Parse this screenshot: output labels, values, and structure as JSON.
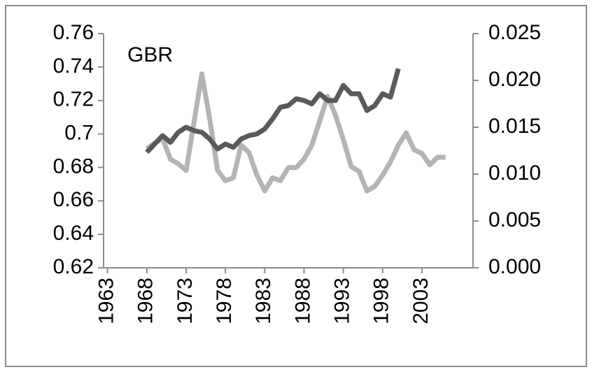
{
  "chart_data": {
    "type": "line",
    "annotations": [
      "GBR"
    ],
    "x": [
      1968,
      1969,
      1970,
      1971,
      1972,
      1973,
      1974,
      1975,
      1976,
      1977,
      1978,
      1979,
      1980,
      1981,
      1982,
      1983,
      1984,
      1985,
      1986,
      1987,
      1988,
      1989,
      1990,
      1991,
      1992,
      1993,
      1994,
      1995,
      1996,
      1997,
      1998,
      1999,
      2000,
      2001,
      2002,
      2003,
      2004,
      2005,
      2006
    ],
    "series": [
      {
        "color": "#5a5a5a",
        "axis": "y",
        "values": [
          0.689,
          0.694,
          0.699,
          0.695,
          0.701,
          0.704,
          0.702,
          0.701,
          0.697,
          0.691,
          0.694,
          0.692,
          0.697,
          0.699,
          0.7,
          0.703,
          0.709,
          0.716,
          0.717,
          0.721,
          0.72,
          0.718,
          0.724,
          0.72,
          0.72,
          0.729,
          0.724,
          0.724,
          0.714,
          0.717,
          0.724,
          0.722,
          0.739,
          null,
          null,
          null,
          null,
          null,
          null
        ]
      },
      {
        "color": "#b4b4b4",
        "axis": "y2",
        "values": [
          0.0127,
          0.0133,
          0.0138,
          0.0116,
          0.0111,
          0.0104,
          0.0155,
          0.0207,
          0.0159,
          0.0104,
          0.0093,
          0.0096,
          0.0131,
          0.0123,
          0.0099,
          0.0082,
          0.0096,
          0.0093,
          0.0107,
          0.0107,
          0.0116,
          0.0131,
          0.0157,
          0.0183,
          0.0163,
          0.0137,
          0.0108,
          0.0103,
          0.0082,
          0.0087,
          0.0099,
          0.0113,
          0.0131,
          0.0144,
          0.0126,
          0.0122,
          0.011,
          0.0118,
          0.0118
        ]
      }
    ],
    "xlim": [
      1962.5,
      2009.5
    ],
    "xticks": [
      1963,
      1968,
      1973,
      1978,
      1983,
      1988,
      1993,
      1998,
      2003
    ],
    "ylim": [
      0.62,
      0.76
    ],
    "yticks": [
      0.62,
      0.64,
      0.66,
      0.68,
      0.7,
      0.72,
      0.74,
      0.76
    ],
    "y2lim": [
      0,
      0.025
    ],
    "y2ticks": [
      {
        "value": 0,
        "label": "0.000"
      },
      {
        "value": 0.005,
        "label": "0.005"
      },
      {
        "value": 0.01,
        "label": "0.010"
      },
      {
        "value": 0.015,
        "label": "0.015"
      },
      {
        "value": 0.02,
        "label": "0.020"
      },
      {
        "value": 0.025,
        "label": "0.025"
      }
    ],
    "grid": false
  }
}
